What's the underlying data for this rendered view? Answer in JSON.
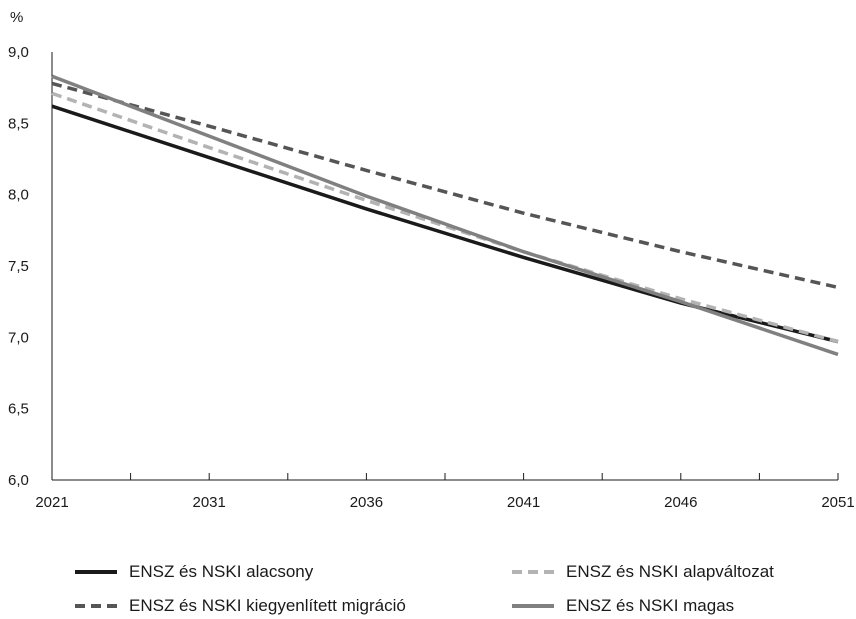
{
  "chart_data": {
    "type": "line",
    "title": "",
    "xlabel": "",
    "ylabel": "%",
    "categories": [
      "2021",
      "2031",
      "2036",
      "2041",
      "2046",
      "2051"
    ],
    "ylim": [
      6.0,
      9.0
    ],
    "yticks": [
      "6,0",
      "6,5",
      "7,0",
      "7,5",
      "8,0",
      "8,5",
      "9,0"
    ],
    "grid": false,
    "legend_position": "bottom",
    "series": [
      {
        "name": "ENSZ és NSKI alacsony",
        "style": "solid",
        "color": "#1a1a1a",
        "values": [
          8.62,
          8.26,
          7.9,
          7.56,
          7.24,
          6.97
        ]
      },
      {
        "name": "ENSZ és NSKI alapváltozat",
        "style": "dashed",
        "color": "#b3b3b3",
        "values": [
          8.71,
          8.33,
          7.96,
          7.6,
          7.27,
          6.97
        ]
      },
      {
        "name": "ENSZ és NSKI kiegyenlített migráció",
        "style": "dashed",
        "color": "#555555",
        "values": [
          8.78,
          8.48,
          8.17,
          7.87,
          7.6,
          7.35
        ]
      },
      {
        "name": "ENSZ és NSKI magas",
        "style": "solid",
        "color": "#808080",
        "values": [
          8.83,
          8.41,
          7.99,
          7.6,
          7.25,
          6.88
        ]
      }
    ]
  }
}
